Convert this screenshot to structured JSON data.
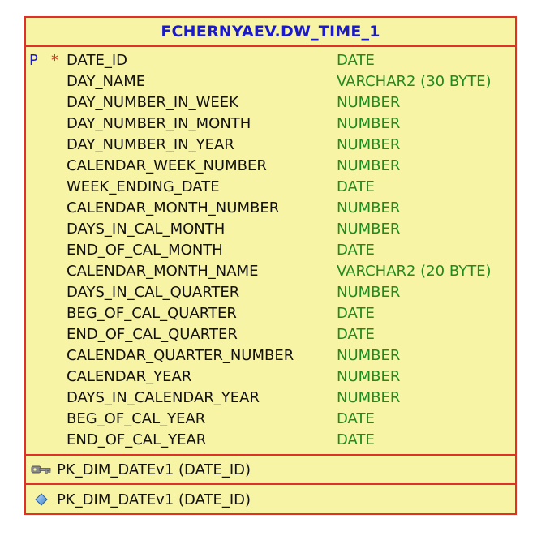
{
  "table": {
    "title": "FCHERNYAEV.DW_TIME_1",
    "pk_marker": "P",
    "required_marker": "*",
    "columns": [
      {
        "name": "DATE_ID",
        "type": "DATE",
        "pk": true,
        "required": true
      },
      {
        "name": "DAY_NAME",
        "type": "VARCHAR2 (30 BYTE)"
      },
      {
        "name": "DAY_NUMBER_IN_WEEK",
        "type": "NUMBER"
      },
      {
        "name": "DAY_NUMBER_IN_MONTH",
        "type": "NUMBER"
      },
      {
        "name": "DAY_NUMBER_IN_YEAR",
        "type": "NUMBER"
      },
      {
        "name": "CALENDAR_WEEK_NUMBER",
        "type": "NUMBER"
      },
      {
        "name": "WEEK_ENDING_DATE",
        "type": "DATE"
      },
      {
        "name": "CALENDAR_MONTH_NUMBER",
        "type": "NUMBER"
      },
      {
        "name": "DAYS_IN_CAL_MONTH",
        "type": "NUMBER"
      },
      {
        "name": "END_OF_CAL_MONTH",
        "type": "DATE"
      },
      {
        "name": "CALENDAR_MONTH_NAME",
        "type": "VARCHAR2 (20 BYTE)"
      },
      {
        "name": "DAYS_IN_CAL_QUARTER",
        "type": "NUMBER"
      },
      {
        "name": "BEG_OF_CAL_QUARTER",
        "type": "DATE"
      },
      {
        "name": "END_OF_CAL_QUARTER",
        "type": "DATE"
      },
      {
        "name": "CALENDAR_QUARTER_NUMBER",
        "type": "NUMBER"
      },
      {
        "name": "CALENDAR_YEAR",
        "type": "NUMBER"
      },
      {
        "name": "DAYS_IN_CALENDAR_YEAR",
        "type": "NUMBER"
      },
      {
        "name": "BEG_OF_CAL_YEAR",
        "type": "DATE"
      },
      {
        "name": "END_OF_CAL_YEAR",
        "type": "DATE"
      }
    ],
    "key": {
      "label": "PK_DIM_DATEv1 (DATE_ID)",
      "icon": "key-icon"
    },
    "index": {
      "label": "PK_DIM_DATEv1 (DATE_ID)",
      "icon": "index-diamond-icon"
    }
  },
  "colors": {
    "background": "#f8f4a6",
    "border": "#e03028",
    "title": "#1a1acc",
    "column_name": "#111111",
    "column_type": "#1f8a1f",
    "pk_marker": "#1a1acc",
    "required_marker": "#e03028"
  }
}
